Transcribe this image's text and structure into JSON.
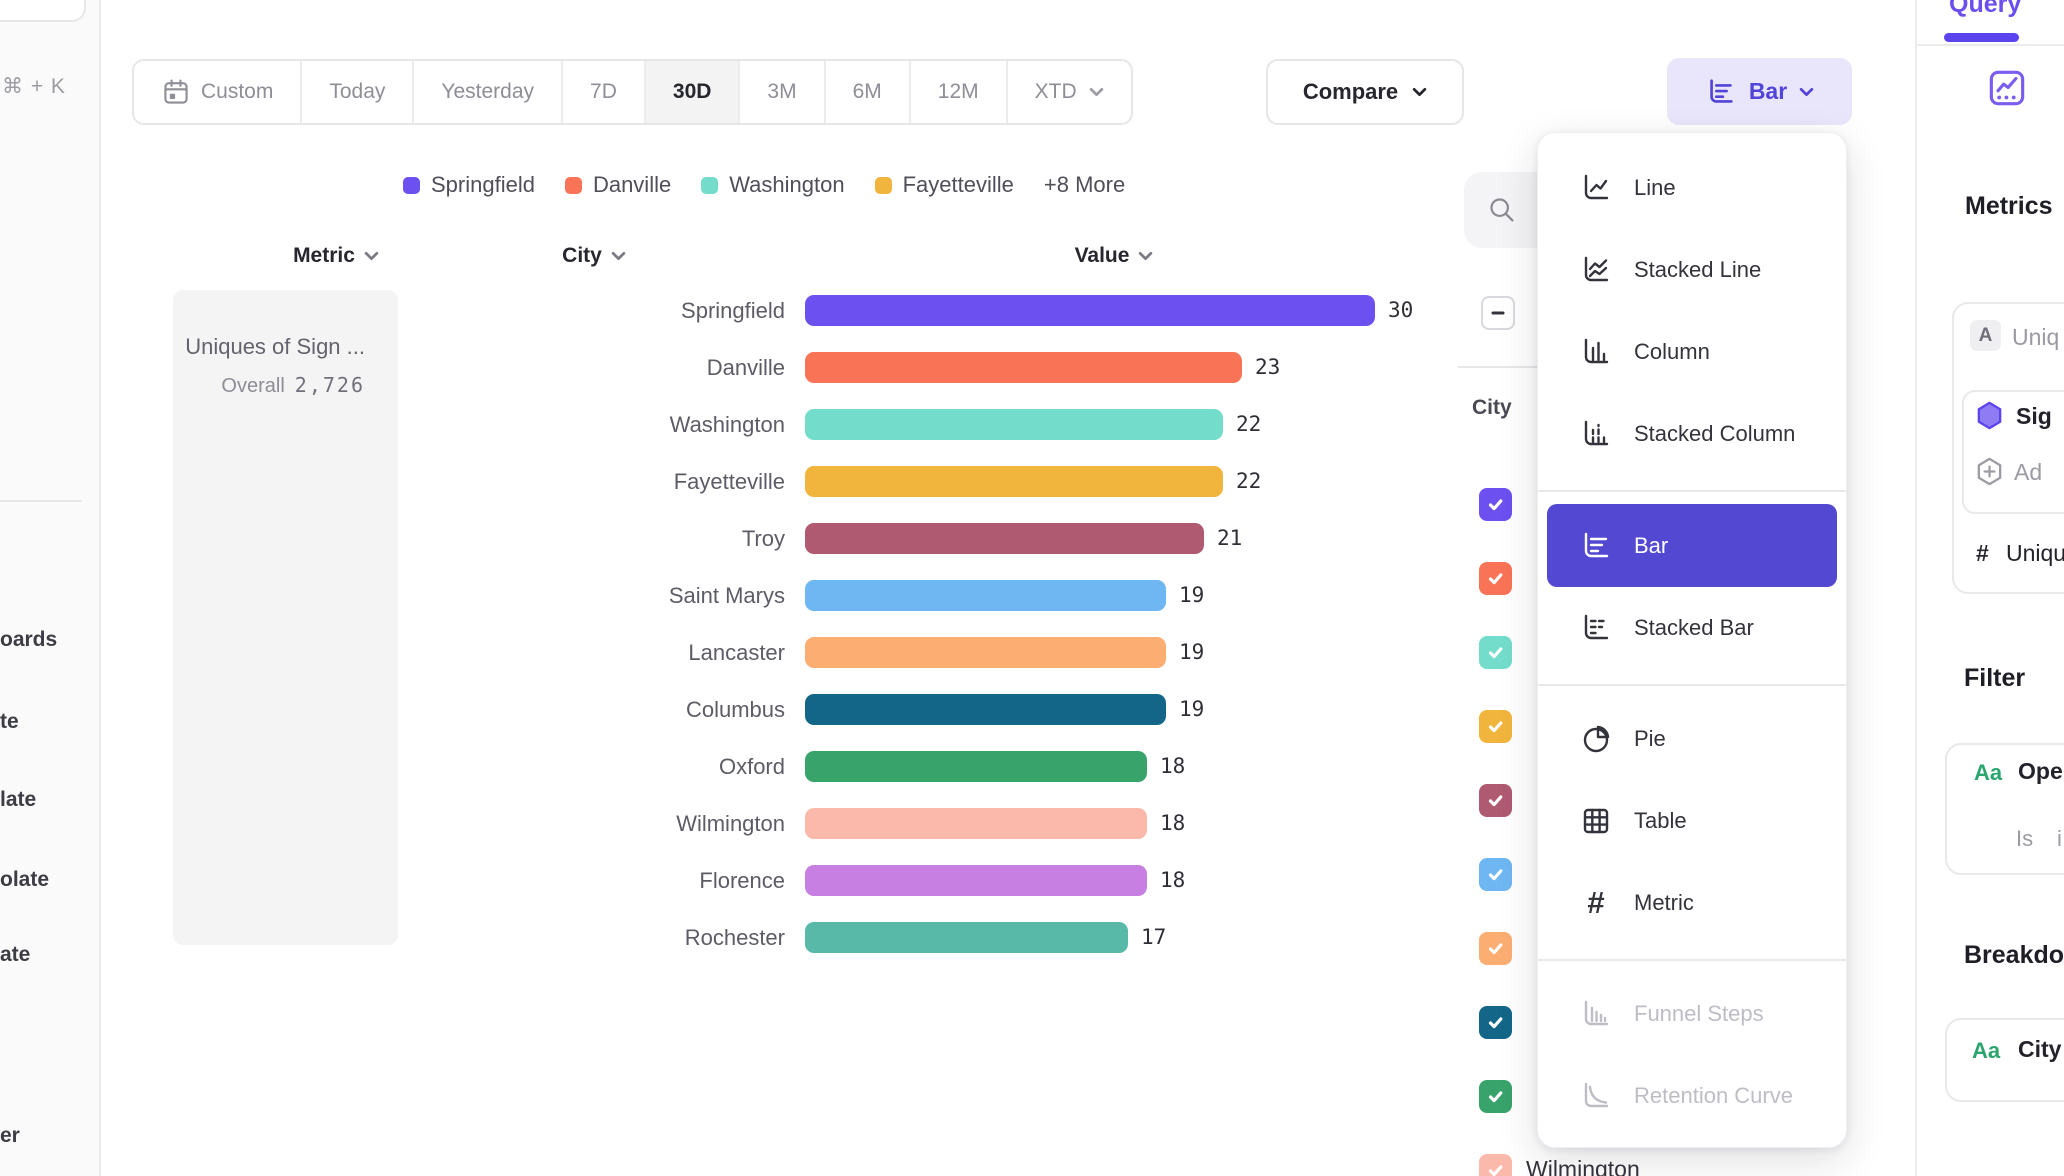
{
  "sidebar": {
    "shortcut": "⌘ + K",
    "items": [
      "oards",
      "te",
      "late",
      "olate",
      "ate"
    ],
    "bottom_item": "er"
  },
  "toolbar": {
    "date_ranges": [
      {
        "label": "Custom",
        "icon": "calendar-icon"
      },
      {
        "label": "Today"
      },
      {
        "label": "Yesterday"
      },
      {
        "label": "7D"
      },
      {
        "label": "30D"
      },
      {
        "label": "3M"
      },
      {
        "label": "6M"
      },
      {
        "label": "12M"
      },
      {
        "label": "XTD",
        "chevron": true
      }
    ],
    "active": "30D",
    "compare_label": "Compare",
    "chart_type_label": "Bar"
  },
  "legend": {
    "items": [
      {
        "label": "Springfield",
        "color": "#6C50F0"
      },
      {
        "label": "Danville",
        "color": "#F97356"
      },
      {
        "label": "Washington",
        "color": "#74DCCB"
      },
      {
        "label": "Fayetteville",
        "color": "#F1B43C"
      }
    ],
    "more_label": "+8 More"
  },
  "columns": {
    "metric": "Metric",
    "city": "City",
    "value": "Value"
  },
  "metric_card": {
    "title": "Uniques of Sign ...",
    "overall_label": "Overall",
    "overall_value": "2,726"
  },
  "chart_data": {
    "type": "bar",
    "orientation": "horizontal",
    "title": "",
    "xlabel": "Value",
    "ylabel": "City",
    "xlim": [
      0,
      30
    ],
    "categories": [
      "Springfield",
      "Danville",
      "Washington",
      "Fayetteville",
      "Troy",
      "Saint Marys",
      "Lancaster",
      "Columbus",
      "Oxford",
      "Wilmington",
      "Florence",
      "Rochester"
    ],
    "values": [
      30,
      23,
      22,
      22,
      21,
      19,
      19,
      19,
      18,
      18,
      18,
      17
    ],
    "colors": [
      "#6C50F0",
      "#F97356",
      "#74DCCB",
      "#F1B43C",
      "#B05A72",
      "#6FB7F2",
      "#FBAD72",
      "#136688",
      "#38A36A",
      "#FBB9AC",
      "#C77FE2",
      "#58B9A9"
    ],
    "overall": 2726,
    "metric": "Uniques of Sign ...",
    "value_labels": [
      "30",
      "23",
      "22",
      "22",
      "21",
      "19",
      "19",
      "19",
      "18",
      "18",
      "18",
      "17"
    ]
  },
  "city_panel": {
    "header": "City",
    "select_all_state": "indeterminate",
    "checkbox_colors": [
      "#6C50F0",
      "#F97356",
      "#74DCCB",
      "#F1B43C",
      "#B05A72",
      "#6FB7F2",
      "#FBAD72",
      "#136688",
      "#38A36A",
      "#FBB9AC"
    ],
    "visible_item": "Wilmington"
  },
  "chart_type_menu": {
    "selected": "Bar",
    "groups": [
      [
        {
          "label": "Line",
          "icon": "line-chart-icon"
        },
        {
          "label": "Stacked Line",
          "icon": "stacked-line-icon"
        },
        {
          "label": "Column",
          "icon": "column-chart-icon"
        },
        {
          "label": "Stacked Column",
          "icon": "stacked-column-icon"
        }
      ],
      [
        {
          "label": "Bar",
          "icon": "bar-chart-icon"
        },
        {
          "label": "Stacked Bar",
          "icon": "stacked-bar-icon"
        }
      ],
      [
        {
          "label": "Pie",
          "icon": "pie-chart-icon"
        },
        {
          "label": "Table",
          "icon": "table-icon"
        },
        {
          "label": "Metric",
          "icon": "metric-icon"
        }
      ],
      [
        {
          "label": "Funnel Steps",
          "icon": "funnel-icon",
          "disabled": true
        },
        {
          "label": "Retention Curve",
          "icon": "retention-icon",
          "disabled": true
        }
      ]
    ]
  },
  "query_panel": {
    "tab": "Query",
    "metrics_heading": "Metrics",
    "metric_badge": "A",
    "metric_label": "Uniq",
    "event_label": "Sig",
    "add_label": "Ad",
    "measure_prefix": "#",
    "measure_label": "Uniqu",
    "filter_heading": "Filter",
    "filter_badge": "Aa",
    "filter_label": "Ope",
    "filter_operator": "Is",
    "filter_value": "i",
    "breakdown_heading": "Breakdo",
    "breakdown_badge": "Aa",
    "breakdown_label": "City"
  }
}
